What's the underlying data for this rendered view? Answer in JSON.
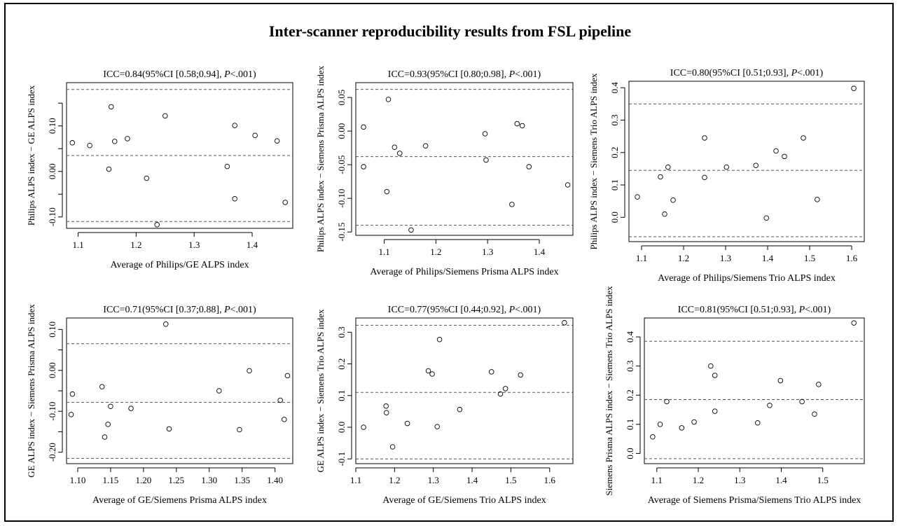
{
  "figure": {
    "title": "Inter-scanner reproducibility results from FSL pipeline"
  },
  "chart_data": [
    {
      "type": "scatter",
      "title_prefix": "ICC=0.84(95%CI [0.58;0.94], ",
      "title_p": "P",
      "title_suffix": "<.001)",
      "xlabel": "Average of Philips/GE ALPS index",
      "ylabel": "Philips ALPS index − GE ALPS index",
      "xlim": [
        1.08,
        1.47
      ],
      "ylim": [
        -0.125,
        0.195
      ],
      "xticks": [
        1.1,
        1.2,
        1.3,
        1.4
      ],
      "xticklabels": [
        "1.1",
        "1.2",
        "1.3",
        "1.4"
      ],
      "yticks": [
        -0.15,
        -0.1,
        -0.05,
        0,
        0.05,
        0.1,
        0.15
      ],
      "yticklabels": [
        "",
        "-0.10",
        "",
        "0.00",
        "",
        "0.10",
        ""
      ],
      "hlines": [
        0.18,
        0.035,
        -0.11
      ],
      "points": [
        [
          1.09,
          0.063
        ],
        [
          1.12,
          0.057
        ],
        [
          1.153,
          0.005
        ],
        [
          1.157,
          0.142
        ],
        [
          1.163,
          0.066
        ],
        [
          1.185,
          0.072
        ],
        [
          1.218,
          -0.015
        ],
        [
          1.236,
          -0.117
        ],
        [
          1.25,
          0.122
        ],
        [
          1.357,
          0.011
        ],
        [
          1.37,
          0.101
        ],
        [
          1.37,
          -0.06
        ],
        [
          1.405,
          0.079
        ],
        [
          1.443,
          0.067
        ],
        [
          1.457,
          -0.068
        ]
      ]
    },
    {
      "type": "scatter",
      "title_prefix": "ICC=0.93(95%CI [0.80;0.98], ",
      "title_p": "P",
      "title_suffix": "<.001)",
      "xlabel": "Average of Philips/Siemens Prisma ALPS index",
      "ylabel": "Philips ALPS index − Siemens Prisma ALPS index",
      "xlim": [
        1.045,
        1.465
      ],
      "ylim": [
        -0.155,
        0.072
      ],
      "xticks": [
        1.1,
        1.2,
        1.3,
        1.4
      ],
      "xticklabels": [
        "1.1",
        "1.2",
        "1.3",
        "1.4"
      ],
      "yticks": [
        -0.15,
        -0.1,
        -0.05,
        0,
        0.05
      ],
      "yticklabels": [
        "-0.15",
        "-0.10",
        "-0.05",
        "0.00",
        "0.05"
      ],
      "hlines": [
        0.062,
        -0.038,
        -0.14
      ],
      "points": [
        [
          1.06,
          0.006
        ],
        [
          1.06,
          -0.053
        ],
        [
          1.105,
          -0.09
        ],
        [
          1.108,
          0.047
        ],
        [
          1.12,
          -0.024
        ],
        [
          1.13,
          -0.033
        ],
        [
          1.152,
          -0.147
        ],
        [
          1.18,
          -0.022
        ],
        [
          1.295,
          -0.004
        ],
        [
          1.297,
          -0.043
        ],
        [
          1.347,
          -0.109
        ],
        [
          1.357,
          0.011
        ],
        [
          1.367,
          0.008
        ],
        [
          1.38,
          -0.053
        ],
        [
          1.455,
          -0.08
        ]
      ]
    },
    {
      "type": "scatter",
      "title_prefix": "ICC=0.80(95%CI [0.51;0.93], ",
      "title_p": "P",
      "title_suffix": "<.001)",
      "xlabel": "Average of Philips/Siemens Trio ALPS index",
      "ylabel": "Philips ALPS index − Siemens Trio ALPS index",
      "xlim": [
        1.07,
        1.63
      ],
      "ylim": [
        -0.075,
        0.42
      ],
      "xticks": [
        1.1,
        1.2,
        1.3,
        1.4,
        1.5,
        1.6
      ],
      "xticklabels": [
        "1.1",
        "1.2",
        "1.3",
        "1.4",
        "1.5",
        "1.6"
      ],
      "yticks": [
        0,
        0.1,
        0.2,
        0.3,
        0.4
      ],
      "yticklabels": [
        "0.0",
        "0.1",
        "0.2",
        "0.3",
        "0.4"
      ],
      "hlines": [
        0.35,
        0.145,
        -0.06
      ],
      "points": [
        [
          1.09,
          0.063
        ],
        [
          1.145,
          0.125
        ],
        [
          1.155,
          0.01
        ],
        [
          1.163,
          0.155
        ],
        [
          1.175,
          0.053
        ],
        [
          1.25,
          0.245
        ],
        [
          1.25,
          0.123
        ],
        [
          1.302,
          0.155
        ],
        [
          1.372,
          0.16
        ],
        [
          1.397,
          -0.002
        ],
        [
          1.42,
          0.205
        ],
        [
          1.44,
          0.188
        ],
        [
          1.485,
          0.245
        ],
        [
          1.518,
          0.055
        ],
        [
          1.605,
          0.398
        ]
      ]
    },
    {
      "type": "scatter",
      "title_prefix": "ICC=0.71(95%CI [0.37;0.88], ",
      "title_p": "P",
      "title_suffix": "<.001)",
      "xlabel": "Average of GE/Siemens Prisma ALPS index",
      "ylabel": "GE ALPS index − Siemens Prisma ALPS index",
      "xlim": [
        1.083,
        1.427
      ],
      "ylim": [
        -0.228,
        0.128
      ],
      "xticks": [
        1.1,
        1.15,
        1.2,
        1.25,
        1.3,
        1.35,
        1.4
      ],
      "xticklabels": [
        "1.10",
        "1.15",
        "1.20",
        "1.25",
        "1.30",
        "1.35",
        "1.40"
      ],
      "yticks": [
        -0.2,
        -0.15,
        -0.1,
        -0.05,
        0,
        0.05,
        0.1
      ],
      "yticklabels": [
        "-0.20",
        "",
        "-0.10",
        "",
        "0.00",
        "",
        "0.10"
      ],
      "hlines": [
        0.065,
        -0.078,
        -0.215
      ],
      "points": [
        [
          1.09,
          -0.108
        ],
        [
          1.092,
          -0.058
        ],
        [
          1.137,
          -0.04
        ],
        [
          1.141,
          -0.163
        ],
        [
          1.146,
          -0.132
        ],
        [
          1.15,
          -0.088
        ],
        [
          1.181,
          -0.093
        ],
        [
          1.234,
          0.113
        ],
        [
          1.239,
          -0.143
        ],
        [
          1.315,
          -0.05
        ],
        [
          1.346,
          -0.145
        ],
        [
          1.361,
          -0.001
        ],
        [
          1.408,
          -0.073
        ],
        [
          1.414,
          -0.12
        ],
        [
          1.419,
          -0.013
        ]
      ]
    },
    {
      "type": "scatter",
      "title_prefix": "ICC=0.77(95%CI [0.44;0.92], ",
      "title_p": "P",
      "title_suffix": "<.001)",
      "xlabel": "Average of GE/Siemens Trio ALPS index",
      "ylabel": "GE ALPS index − Siemens Trio ALPS index",
      "xlim": [
        1.1,
        1.66
      ],
      "ylim": [
        -0.115,
        0.345
      ],
      "xticks": [
        1.1,
        1.2,
        1.3,
        1.4,
        1.5,
        1.6
      ],
      "xticklabels": [
        "1.1",
        "1.2",
        "1.3",
        "1.4",
        "1.5",
        "1.6"
      ],
      "yticks": [
        -0.1,
        0,
        0.1,
        0.2,
        0.3
      ],
      "yticklabels": [
        "-0.1",
        "0.0",
        "0.1",
        "0.2",
        "0.3"
      ],
      "hlines": [
        0.322,
        0.11,
        -0.1
      ],
      "points": [
        [
          1.12,
          0.0
        ],
        [
          1.178,
          0.067
        ],
        [
          1.179,
          0.046
        ],
        [
          1.195,
          -0.062
        ],
        [
          1.233,
          0.012
        ],
        [
          1.287,
          0.178
        ],
        [
          1.297,
          0.168
        ],
        [
          1.31,
          0.002
        ],
        [
          1.316,
          0.277
        ],
        [
          1.368,
          0.056
        ],
        [
          1.45,
          0.175
        ],
        [
          1.473,
          0.105
        ],
        [
          1.486,
          0.122
        ],
        [
          1.525,
          0.165
        ],
        [
          1.638,
          0.33
        ]
      ]
    },
    {
      "type": "scatter",
      "title_prefix": "ICC=0.81(95%CI [0.51;0.93], ",
      "title_p": "P",
      "title_suffix": "<.001)",
      "xlabel": "Average of Siemens Prisma/Siemens Trio ALPS index",
      "ylabel": "Siemens Prisma ALPS index − Siemens Trio ALPS index",
      "xlim": [
        1.07,
        1.6
      ],
      "ylim": [
        -0.035,
        0.465
      ],
      "xticks": [
        1.1,
        1.2,
        1.3,
        1.4,
        1.5
      ],
      "xticklabels": [
        "1.1",
        "1.2",
        "1.3",
        "1.4",
        "1.5"
      ],
      "yticks": [
        0,
        0.1,
        0.2,
        0.3,
        0.4
      ],
      "yticklabels": [
        "0.0",
        "0.1",
        "0.2",
        "0.3",
        "0.4"
      ],
      "hlines": [
        0.385,
        0.185,
        -0.018
      ],
      "points": [
        [
          1.09,
          0.057
        ],
        [
          1.108,
          0.1
        ],
        [
          1.124,
          0.178
        ],
        [
          1.16,
          0.088
        ],
        [
          1.19,
          0.108
        ],
        [
          1.23,
          0.3
        ],
        [
          1.24,
          0.268
        ],
        [
          1.24,
          0.145
        ],
        [
          1.343,
          0.105
        ],
        [
          1.372,
          0.165
        ],
        [
          1.398,
          0.25
        ],
        [
          1.45,
          0.178
        ],
        [
          1.48,
          0.135
        ],
        [
          1.49,
          0.237
        ],
        [
          1.575,
          0.448
        ]
      ]
    }
  ]
}
